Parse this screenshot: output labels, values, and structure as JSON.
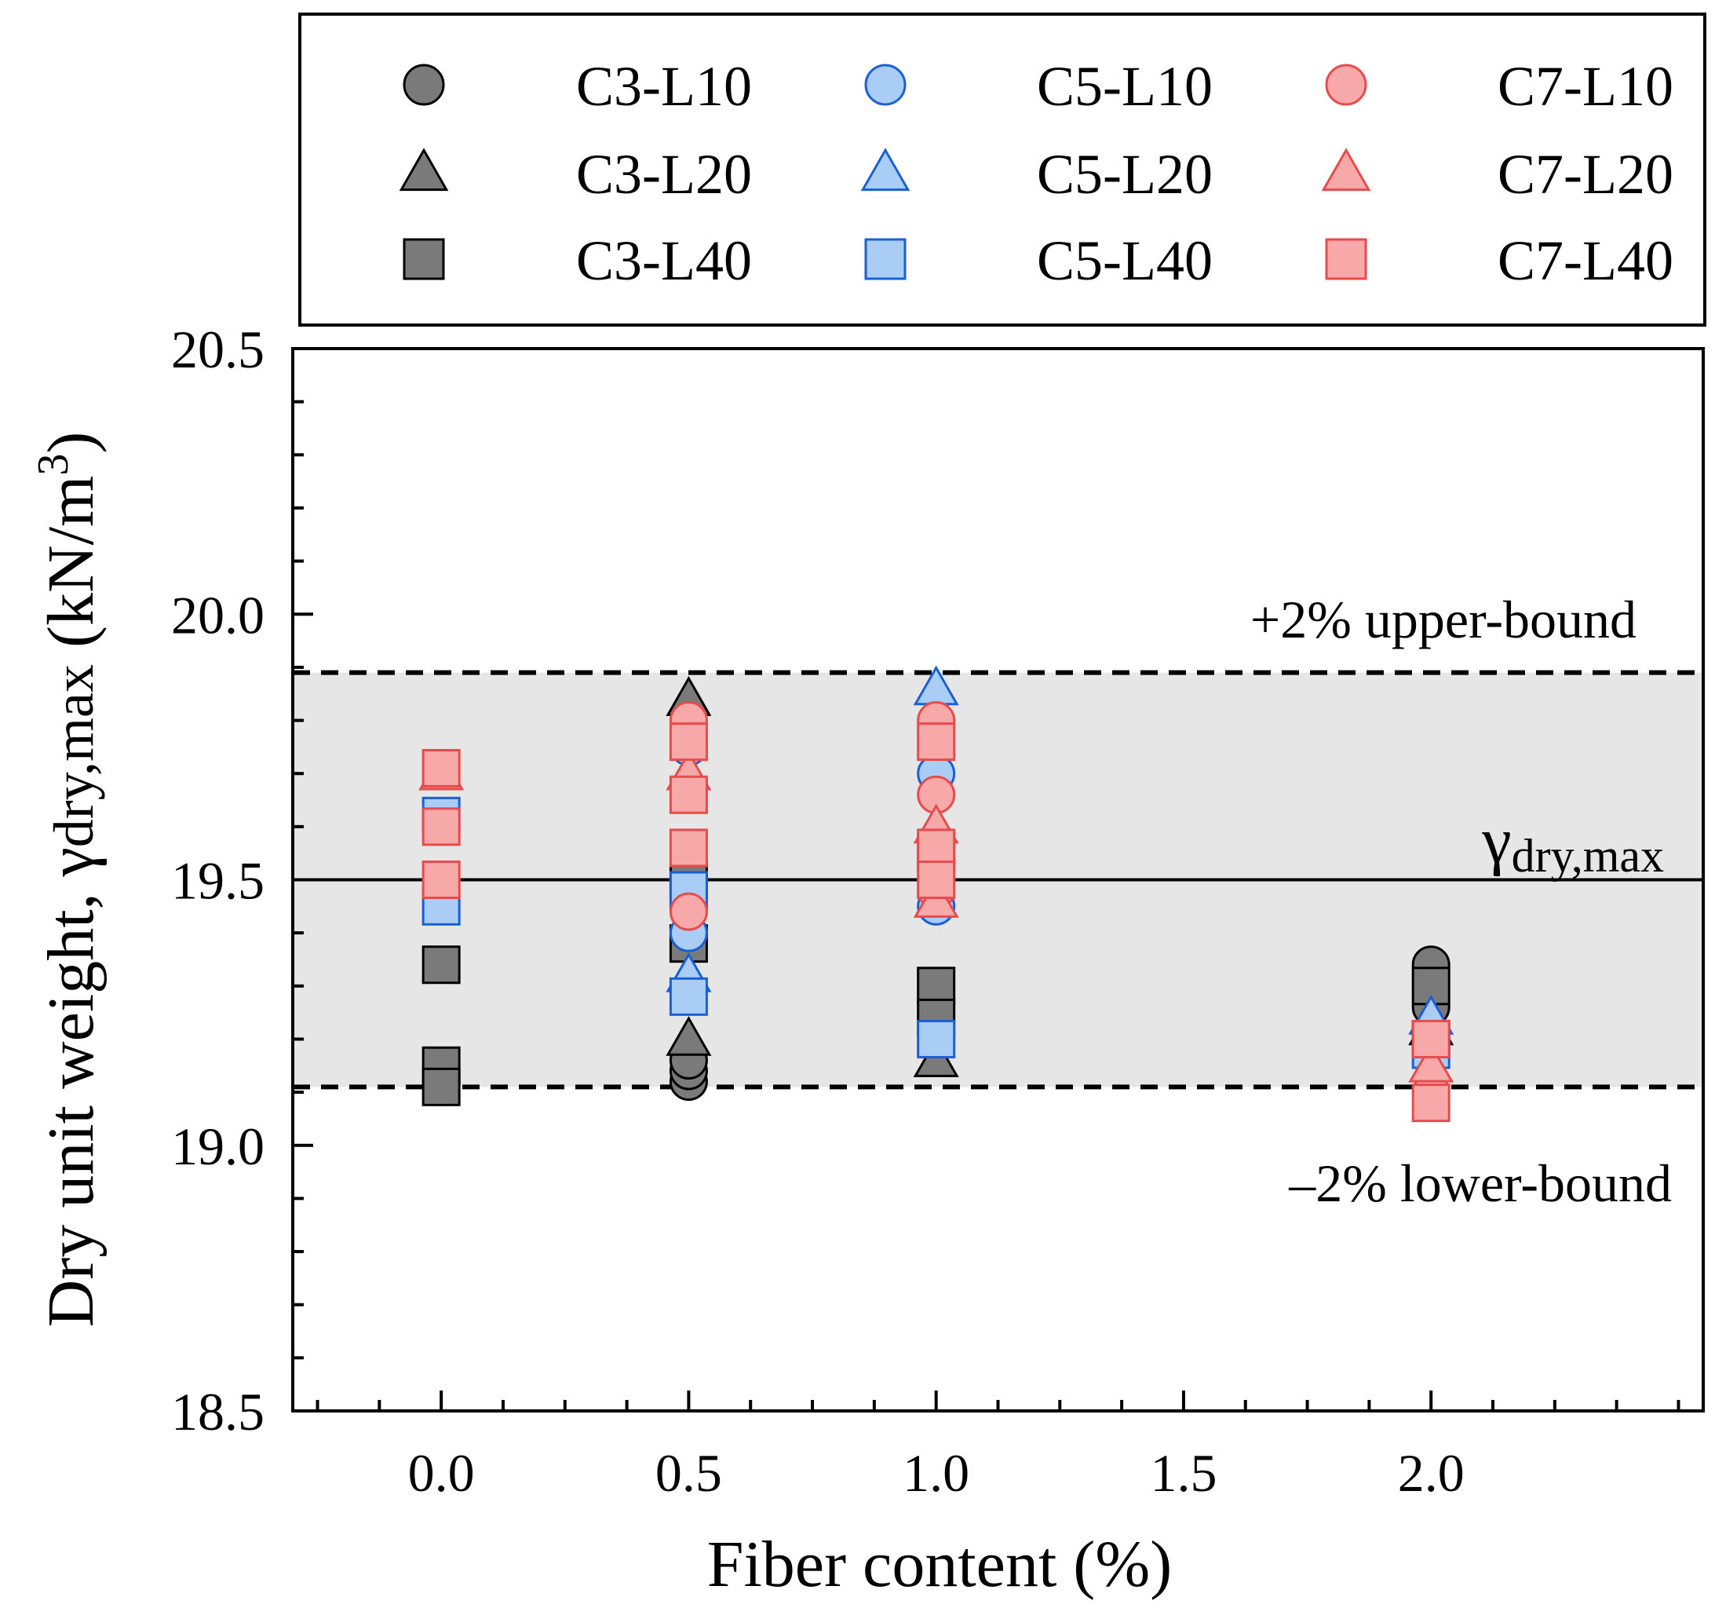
{
  "chart_data": {
    "type": "scatter",
    "xlabel": "Fiber content (%)",
    "ylabel": {
      "prefix": "Dry unit weight, ",
      "symbol": "γ",
      "subscript": "dry,max",
      "unit_open": "  (kN/m",
      "unit_sup": "3",
      "unit_close": ")"
    },
    "xlim": [
      -0.3,
      2.55
    ],
    "ylim": [
      18.5,
      20.5
    ],
    "xticks": [
      0.0,
      0.5,
      1.0,
      1.5,
      2.0
    ],
    "xtick_labels": [
      "0.0",
      "0.5",
      "1.0",
      "1.5",
      "2.0"
    ],
    "yticks": [
      18.5,
      19.0,
      19.5,
      20.0,
      20.5
    ],
    "ytick_labels": [
      "18.5",
      "19.0",
      "19.5",
      "20.0",
      "20.5"
    ],
    "reference_lines": {
      "center": {
        "value": 19.5,
        "label_symbol": "γ",
        "label_subscript": "dry,max"
      },
      "upper": {
        "value": 19.89,
        "label": "+2% upper-bound"
      },
      "lower": {
        "value": 19.11,
        "label": "–2% lower-bound"
      }
    },
    "colors": {
      "C3": {
        "fill": "#7a7a7a",
        "stroke": "#000000"
      },
      "C5": {
        "fill": "#a9cdf5",
        "stroke": "#1a5fd6"
      },
      "C7": {
        "fill": "#f7a9a9",
        "stroke": "#e84b4b"
      },
      "band": "#e6e6e6"
    },
    "legend_position": "top",
    "series": [
      {
        "name": "C3-L10",
        "group": "C3",
        "marker": "circle",
        "points": [
          [
            0.5,
            19.12
          ],
          [
            0.5,
            19.14
          ],
          [
            0.5,
            19.16
          ],
          [
            2.0,
            19.34
          ],
          [
            2.0,
            19.26
          ]
        ]
      },
      {
        "name": "C3-L20",
        "group": "C3",
        "marker": "triangle",
        "points": [
          [
            0.5,
            19.84
          ],
          [
            0.5,
            19.2
          ],
          [
            1.0,
            19.16
          ],
          [
            2.0,
            19.22
          ]
        ]
      },
      {
        "name": "C3-L40",
        "group": "C3",
        "marker": "square",
        "points": [
          [
            0.0,
            19.34
          ],
          [
            0.0,
            19.15
          ],
          [
            0.0,
            19.11
          ],
          [
            0.5,
            19.38
          ],
          [
            0.5,
            19.5
          ],
          [
            1.0,
            19.3
          ],
          [
            1.0,
            19.24
          ],
          [
            2.0,
            19.3
          ],
          [
            2.0,
            19.2
          ]
        ]
      },
      {
        "name": "C5-L10",
        "group": "C5",
        "marker": "circle",
        "points": [
          [
            0.0,
            19.6
          ],
          [
            0.5,
            19.4
          ],
          [
            0.5,
            19.75
          ],
          [
            1.0,
            19.45
          ],
          [
            1.0,
            19.7
          ]
        ]
      },
      {
        "name": "C5-L20",
        "group": "C5",
        "marker": "triangle",
        "points": [
          [
            0.5,
            19.32
          ],
          [
            1.0,
            19.86
          ],
          [
            2.0,
            19.24
          ]
        ]
      },
      {
        "name": "C5-L40",
        "group": "C5",
        "marker": "square",
        "points": [
          [
            0.0,
            19.45
          ],
          [
            0.0,
            19.62
          ],
          [
            0.5,
            19.28
          ],
          [
            0.5,
            19.48
          ],
          [
            1.0,
            19.2
          ],
          [
            1.0,
            19.55
          ],
          [
            2.0,
            19.18
          ]
        ]
      },
      {
        "name": "C7-L10",
        "group": "C7",
        "marker": "circle",
        "points": [
          [
            0.0,
            19.5
          ],
          [
            0.5,
            19.44
          ],
          [
            0.5,
            19.8
          ],
          [
            1.0,
            19.8
          ],
          [
            1.0,
            19.48
          ],
          [
            1.0,
            19.66
          ],
          [
            2.0,
            19.1
          ]
        ]
      },
      {
        "name": "C7-L20",
        "group": "C7",
        "marker": "triangle",
        "points": [
          [
            0.0,
            19.7
          ],
          [
            0.5,
            19.7
          ],
          [
            1.0,
            19.46
          ],
          [
            1.0,
            19.6
          ],
          [
            2.0,
            19.15
          ]
        ]
      },
      {
        "name": "C7-L40",
        "group": "C7",
        "marker": "square",
        "points": [
          [
            0.0,
            19.71
          ],
          [
            0.0,
            19.6
          ],
          [
            0.0,
            19.5
          ],
          [
            0.5,
            19.76
          ],
          [
            0.5,
            19.66
          ],
          [
            0.5,
            19.56
          ],
          [
            1.0,
            19.76
          ],
          [
            1.0,
            19.56
          ],
          [
            1.0,
            19.5
          ],
          [
            2.0,
            19.2
          ],
          [
            2.0,
            19.08
          ]
        ]
      }
    ]
  }
}
